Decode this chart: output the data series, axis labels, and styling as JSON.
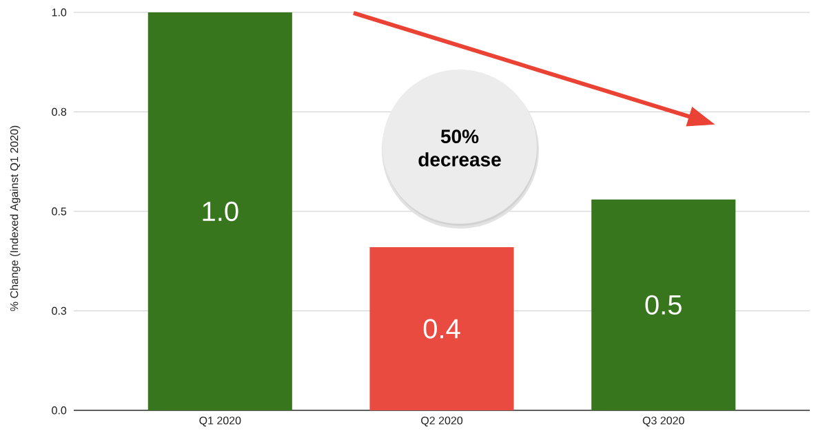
{
  "chart_data": {
    "type": "bar",
    "ylabel": "% Change (Indexed Against Q1 2020)",
    "categories": [
      "Q1 2020",
      "Q2 2020",
      "Q3 2020"
    ],
    "values": [
      1.0,
      0.41,
      0.53
    ],
    "colors": [
      "#38761d",
      "#ea4b40",
      "#38761d"
    ],
    "value_labels": [
      "1.0",
      "0.4",
      "0.5"
    ],
    "ylim": [
      0,
      1
    ],
    "yticks": [
      {
        "value": 0,
        "label": "0.0"
      },
      {
        "value": 0.25,
        "label": "0.3"
      },
      {
        "value": 0.5,
        "label": "0.5"
      },
      {
        "value": 0.75,
        "label": "0.8"
      },
      {
        "value": 1,
        "label": "1.0"
      }
    ],
    "grid": "y",
    "annotations": [
      "50% decrease"
    ]
  }
}
